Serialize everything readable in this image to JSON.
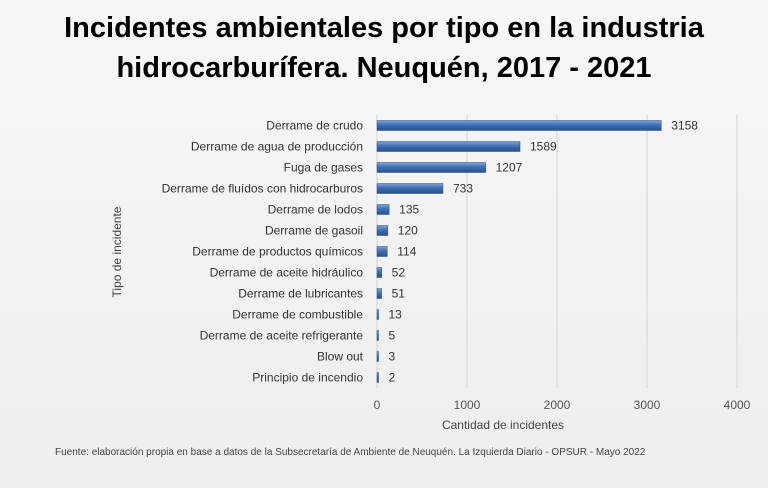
{
  "chart_data": {
    "type": "bar",
    "orientation": "horizontal",
    "title_lines": [
      "Incidentes ambientales por tipo en la industria",
      "hidrocarburífera. Neuquén, 2017 - 2021"
    ],
    "xlabel": "Cantidad de incidentes",
    "ylabel": "Tipo de incidente",
    "xlim": [
      0,
      4000
    ],
    "xticks": [
      0,
      1000,
      2000,
      3000,
      4000
    ],
    "grid": true,
    "categories": [
      "Derrame de crudo",
      "Derrame de agua de producción",
      "Fuga de gases",
      "Derrame de fluídos con hidrocarburos",
      "Derrame de lodos",
      "Derrame de gasoil",
      "Derrame de productos químicos",
      "Derrame de aceite hidráulico",
      "Derrame de lubricantes",
      "Derrame de combustible",
      "Derrame de aceite refrigerante",
      "Blow out",
      "Principio de incendio"
    ],
    "values": [
      3158,
      1589,
      1207,
      733,
      135,
      120,
      114,
      52,
      51,
      13,
      5,
      3,
      2
    ],
    "bar_color": "#3f6fb5"
  },
  "source": "Fuente: elaboración propia en base a datos de la Subsecretaría de Ambiente de Neuquén. La Izquierda Diario - OPSUR - Mayo 2022"
}
